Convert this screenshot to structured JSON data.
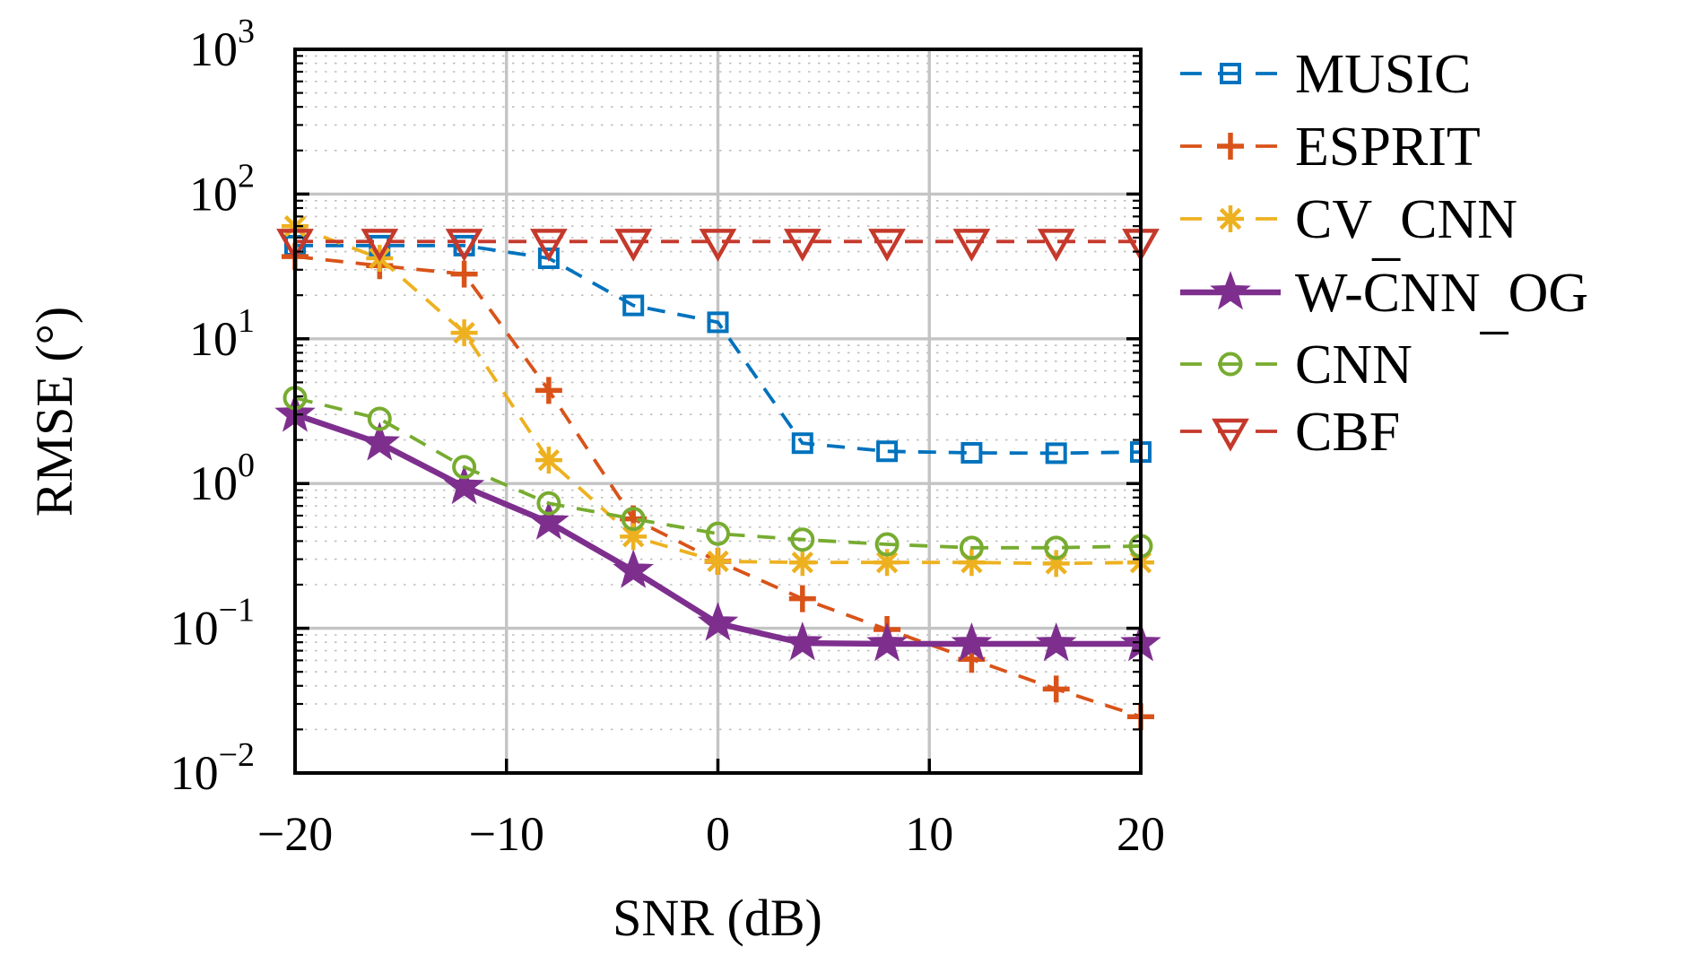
{
  "chart_data": {
    "type": "line",
    "xlabel": "SNR (dB)",
    "ylabel": "RMSE (°)",
    "xlim": [
      -20,
      20
    ],
    "ylim": [
      0.01,
      1000
    ],
    "yscale": "log",
    "grid": {
      "major": "solid gray, both axes",
      "minor": "dotted gray, log minors horizontal only"
    },
    "x_major_ticks": [
      -20,
      -10,
      0,
      10,
      20
    ],
    "x_tick_labels": [
      "−20",
      "−10",
      "0",
      "10",
      "20"
    ],
    "y_major_tick_exponents": [
      3,
      2,
      1,
      0,
      -1,
      -2
    ],
    "y_tick_labels": [
      {
        "base": "10",
        "exp": "3"
      },
      {
        "base": "10",
        "exp": "2"
      },
      {
        "base": "10",
        "exp": "1"
      },
      {
        "base": "10",
        "exp": "0"
      },
      {
        "base": "10",
        "exp": "−1"
      },
      {
        "base": "10",
        "exp": "−2"
      }
    ],
    "x": [
      -20,
      -16,
      -12,
      -8,
      -4,
      0,
      4,
      8,
      12,
      16,
      20
    ],
    "series": [
      {
        "name": "MUSIC",
        "color": "#0072BD",
        "marker": "square",
        "line_style": "dashed",
        "values": [
          44,
          44,
          44,
          36,
          17,
          13,
          1.9,
          1.67,
          1.63,
          1.62,
          1.65
        ]
      },
      {
        "name": "ESPRIT",
        "color": "#D95319",
        "marker": "plus",
        "line_style": "dashed",
        "values": [
          37,
          32,
          28,
          4.4,
          0.57,
          0.29,
          0.16,
          0.098,
          0.061,
          0.038,
          0.0245
        ]
      },
      {
        "name": "CV_CNN",
        "color": "#EDB120",
        "marker": "asterisk",
        "line_style": "dashed",
        "values": [
          60,
          36,
          11,
          1.45,
          0.43,
          0.29,
          0.285,
          0.285,
          0.285,
          0.28,
          0.285
        ]
      },
      {
        "name": "W-CNN_OG",
        "color": "#7E2F8E",
        "marker": "star",
        "line_style": "solid",
        "values": [
          3.0,
          1.9,
          0.95,
          0.54,
          0.25,
          0.108,
          0.079,
          0.078,
          0.078,
          0.078,
          0.078
        ]
      },
      {
        "name": "CNN",
        "color": "#77AC30",
        "marker": "circle",
        "line_style": "dashed",
        "values": [
          3.9,
          2.8,
          1.3,
          0.73,
          0.57,
          0.45,
          0.41,
          0.38,
          0.36,
          0.36,
          0.37
        ]
      },
      {
        "name": "CBF",
        "color": "#C5392B",
        "marker": "triangle-down",
        "line_style": "dashed",
        "values": [
          47,
          47,
          47,
          47,
          47,
          47,
          47,
          47,
          47,
          47,
          47
        ]
      }
    ],
    "legend": {
      "position": "outside right top",
      "entries": [
        "MUSIC",
        "ESPRIT",
        "CV_CNN",
        "W-CNN_OG",
        "CNN",
        "CBF"
      ]
    }
  }
}
